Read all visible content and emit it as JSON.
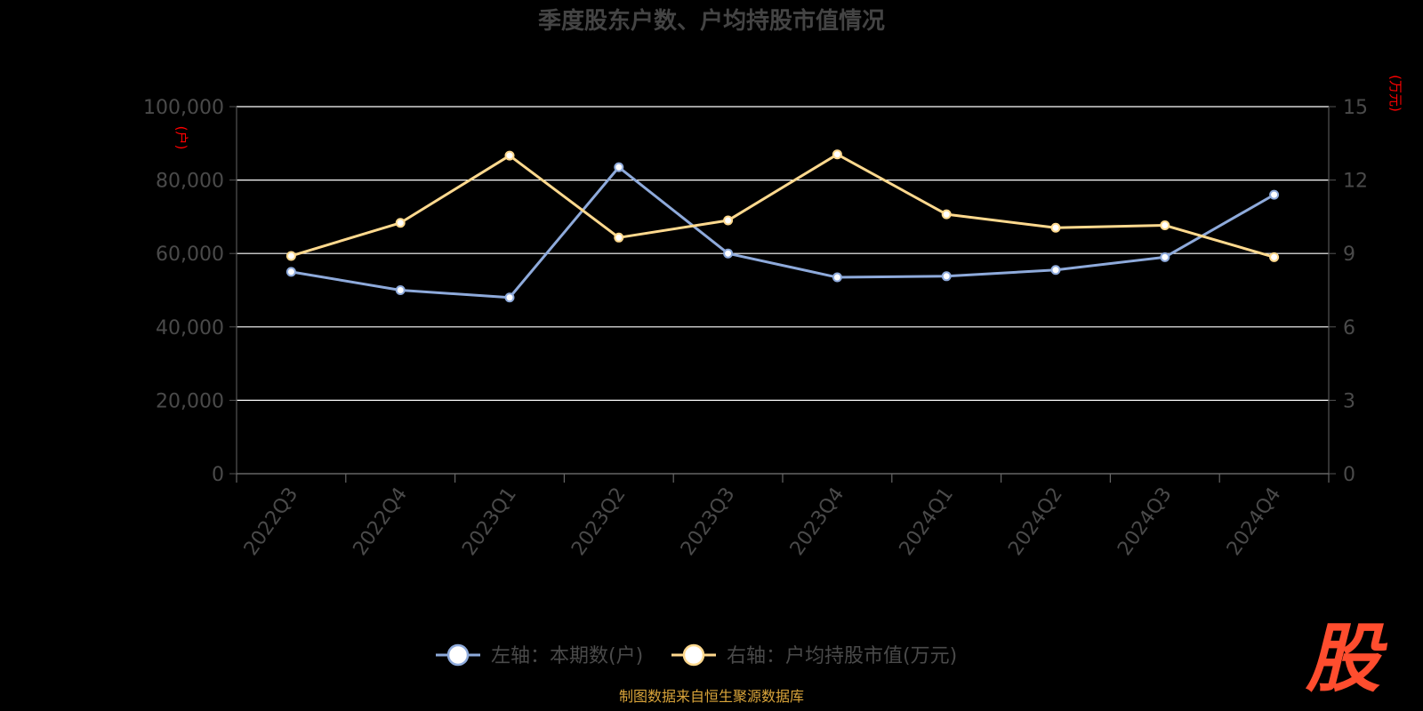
{
  "chart_data": {
    "type": "line",
    "title": "季度股东户数、户均持股市值情况",
    "categories": [
      "2022Q3",
      "2022Q4",
      "2023Q1",
      "2023Q2",
      "2023Q3",
      "2023Q4",
      "2024Q1",
      "2024Q2",
      "2024Q3",
      "2024Q4"
    ],
    "y_left": {
      "unit": "(户)",
      "range": [
        0,
        100000
      ],
      "ticks": [
        "0",
        "20,000",
        "40,000",
        "60,000",
        "80,000",
        "100,000"
      ]
    },
    "y_right": {
      "unit": "(万元)",
      "range": [
        0,
        15
      ],
      "ticks": [
        "0",
        "3",
        "6",
        "9",
        "12",
        "15"
      ]
    },
    "grid": true,
    "legend_position": "bottom",
    "series": [
      {
        "name": "左轴：本期数(户)",
        "axis": "left",
        "color": "#8eaadb",
        "values": [
          55000,
          50000,
          48000,
          83500,
          60000,
          53500,
          53800,
          55500,
          59000,
          76000
        ]
      },
      {
        "name": "右轴：户均持股市值(万元)",
        "axis": "right",
        "color": "#ffd98e",
        "values": [
          8.9,
          10.25,
          13.0,
          9.65,
          10.35,
          13.05,
          10.6,
          10.05,
          10.15,
          8.85
        ]
      }
    ]
  },
  "source_note": "制图数据来自恒生聚源数据库",
  "logo_text": "股"
}
